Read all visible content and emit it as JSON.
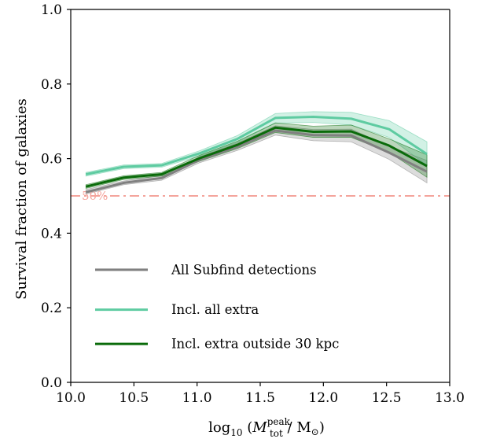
{
  "chart_data": {
    "type": "line",
    "title": "",
    "xlabel": "log10 (M_tot^peak / M⊙)",
    "ylabel": "Survival fraction of galaxies",
    "xlim": [
      10.0,
      13.0
    ],
    "ylim": [
      0.0,
      1.0
    ],
    "xticks": [
      "10.0",
      "10.5",
      "11.0",
      "11.5",
      "12.0",
      "12.5",
      "13.0"
    ],
    "yticks": [
      "0.0",
      "0.2",
      "0.4",
      "0.6",
      "0.8",
      "1.0"
    ],
    "grid": false,
    "legend": "lower-left",
    "x": [
      10.12,
      10.42,
      10.72,
      11.02,
      11.32,
      11.62,
      11.92,
      12.22,
      12.52,
      12.82
    ],
    "series": [
      {
        "name": "All Subfind detections",
        "color": "#808080",
        "values": [
          0.51,
          0.535,
          0.548,
          0.597,
          0.632,
          0.675,
          0.663,
          0.662,
          0.616,
          0.565
        ],
        "band_low": [
          0.505,
          0.53,
          0.542,
          0.589,
          0.622,
          0.663,
          0.648,
          0.645,
          0.598,
          0.535
        ],
        "band_high": [
          0.517,
          0.54,
          0.555,
          0.605,
          0.642,
          0.688,
          0.678,
          0.679,
          0.633,
          0.595
        ]
      },
      {
        "name": "Incl. all extra",
        "color": "#5ecba1",
        "values": [
          0.558,
          0.578,
          0.582,
          0.614,
          0.653,
          0.709,
          0.712,
          0.707,
          0.679,
          0.612
        ],
        "band_low": [
          0.553,
          0.573,
          0.577,
          0.607,
          0.644,
          0.695,
          0.697,
          0.69,
          0.657,
          0.582
        ],
        "band_high": [
          0.563,
          0.583,
          0.587,
          0.621,
          0.662,
          0.721,
          0.726,
          0.724,
          0.702,
          0.645
        ]
      },
      {
        "name": "Incl. extra outside 30 kpc",
        "color": "#0a6b0a",
        "values": [
          0.525,
          0.549,
          0.558,
          0.601,
          0.637,
          0.683,
          0.672,
          0.673,
          0.635,
          0.58
        ],
        "band_low": [
          0.52,
          0.544,
          0.553,
          0.593,
          0.627,
          0.67,
          0.657,
          0.657,
          0.617,
          0.55
        ],
        "band_high": [
          0.53,
          0.554,
          0.563,
          0.609,
          0.647,
          0.696,
          0.687,
          0.69,
          0.653,
          0.61
        ]
      }
    ],
    "reference_line": {
      "y": 0.5,
      "label": "50%",
      "color": "#f4a49c",
      "style": "dash-dot"
    }
  }
}
